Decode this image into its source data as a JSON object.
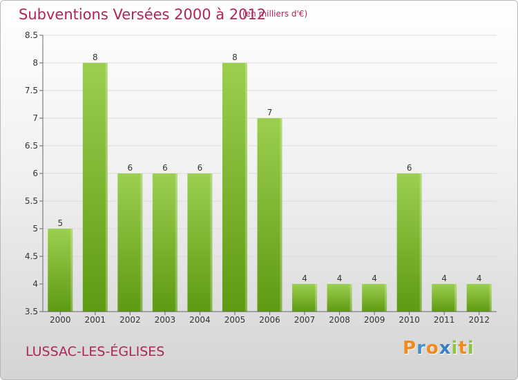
{
  "title": "Subventions Versées 2000 à 2012",
  "subtitle": "(en milliers d'€)",
  "place": "LUSSAC-LES-ÉGLISES",
  "logo": {
    "text": "Proxiti",
    "letters": [
      {
        "ch": "P",
        "color": "#f08a1c"
      },
      {
        "ch": "r",
        "color": "#4a90c8"
      },
      {
        "ch": "o",
        "color": "#f08a1c"
      },
      {
        "ch": "x",
        "color": "#3a7fc4"
      },
      {
        "ch": "i",
        "color": "#8cc63f"
      },
      {
        "ch": "t",
        "color": "#f08a1c"
      },
      {
        "ch": "i",
        "color": "#8cc63f"
      }
    ]
  },
  "colors": {
    "accent": "#b0245a",
    "bar_light": "#9ccf4f",
    "bar_dark": "#5e9a12"
  },
  "chart_data": {
    "type": "bar",
    "categories": [
      "2000",
      "2001",
      "2002",
      "2003",
      "2004",
      "2005",
      "2006",
      "2007",
      "2008",
      "2009",
      "2010",
      "2011",
      "2012"
    ],
    "values": [
      5,
      8,
      6,
      6,
      6,
      8,
      7,
      4,
      4,
      4,
      6,
      4,
      4
    ],
    "data_labels": [
      "5",
      "8",
      "6",
      "6",
      "6",
      "8",
      "7",
      "4",
      "4",
      "4",
      "6",
      "4",
      "4"
    ],
    "y_ticks": [
      3.5,
      4,
      4.5,
      5,
      5.5,
      6,
      6.5,
      7,
      7.5,
      8,
      8.5
    ],
    "y_tick_labels": [
      "3.5",
      "4",
      "4.5",
      "5",
      "5.5",
      "6",
      "6.5",
      "7",
      "7.5",
      "8",
      "8.5"
    ],
    "ylim": [
      3.5,
      8.5
    ],
    "grid": true
  }
}
